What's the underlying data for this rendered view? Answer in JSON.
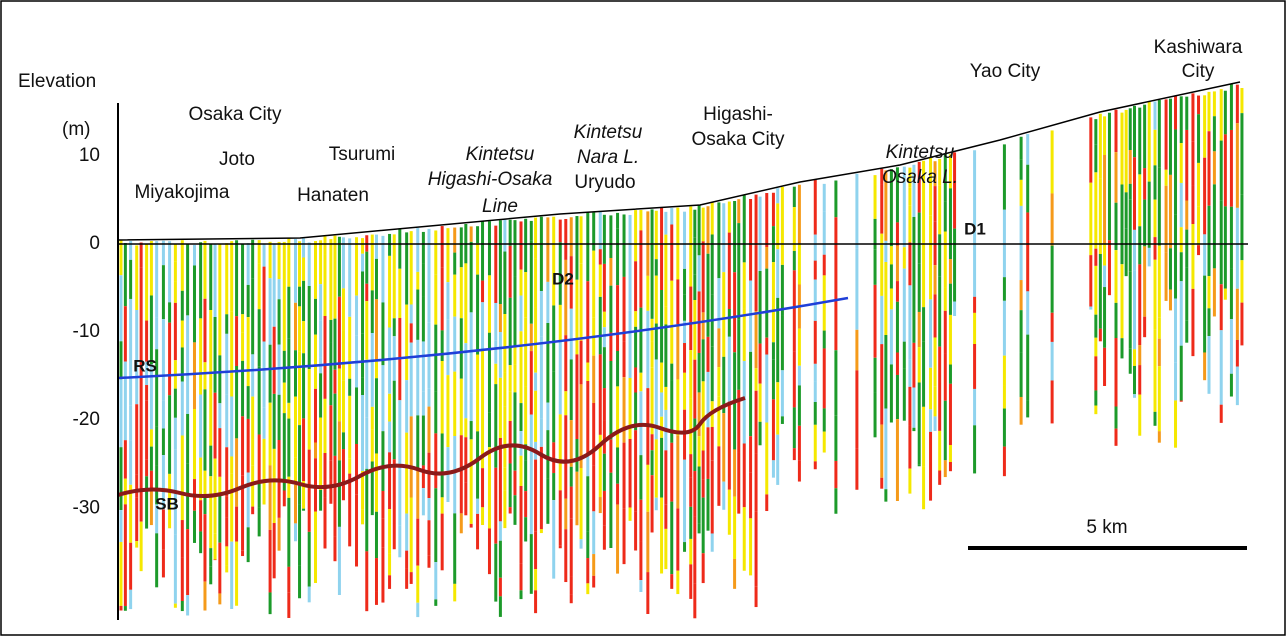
{
  "chart_data": {
    "type": "cross-section",
    "ylabel": "Elevation",
    "yunit": "(m)",
    "ylim": [
      -42,
      16
    ],
    "yticks": [
      10,
      0,
      -10,
      -20,
      -30
    ],
    "place_labels": [
      "Osaka City",
      "Joto",
      "Tsurumi",
      "Miyakojima",
      "Hanaten",
      "Kintetsu",
      "Higashi-Osaka",
      "Line",
      "Kintetsu",
      "Nara L.",
      "Uryudo",
      "Higashi-",
      "Osaka City",
      "Kintetsu",
      "Osaka L.",
      "Yao City",
      "Kashiwara",
      "City"
    ],
    "surface_labels": [
      "D1",
      "D2",
      "RS",
      "SB"
    ],
    "scale_label": "5 km"
  }
}
